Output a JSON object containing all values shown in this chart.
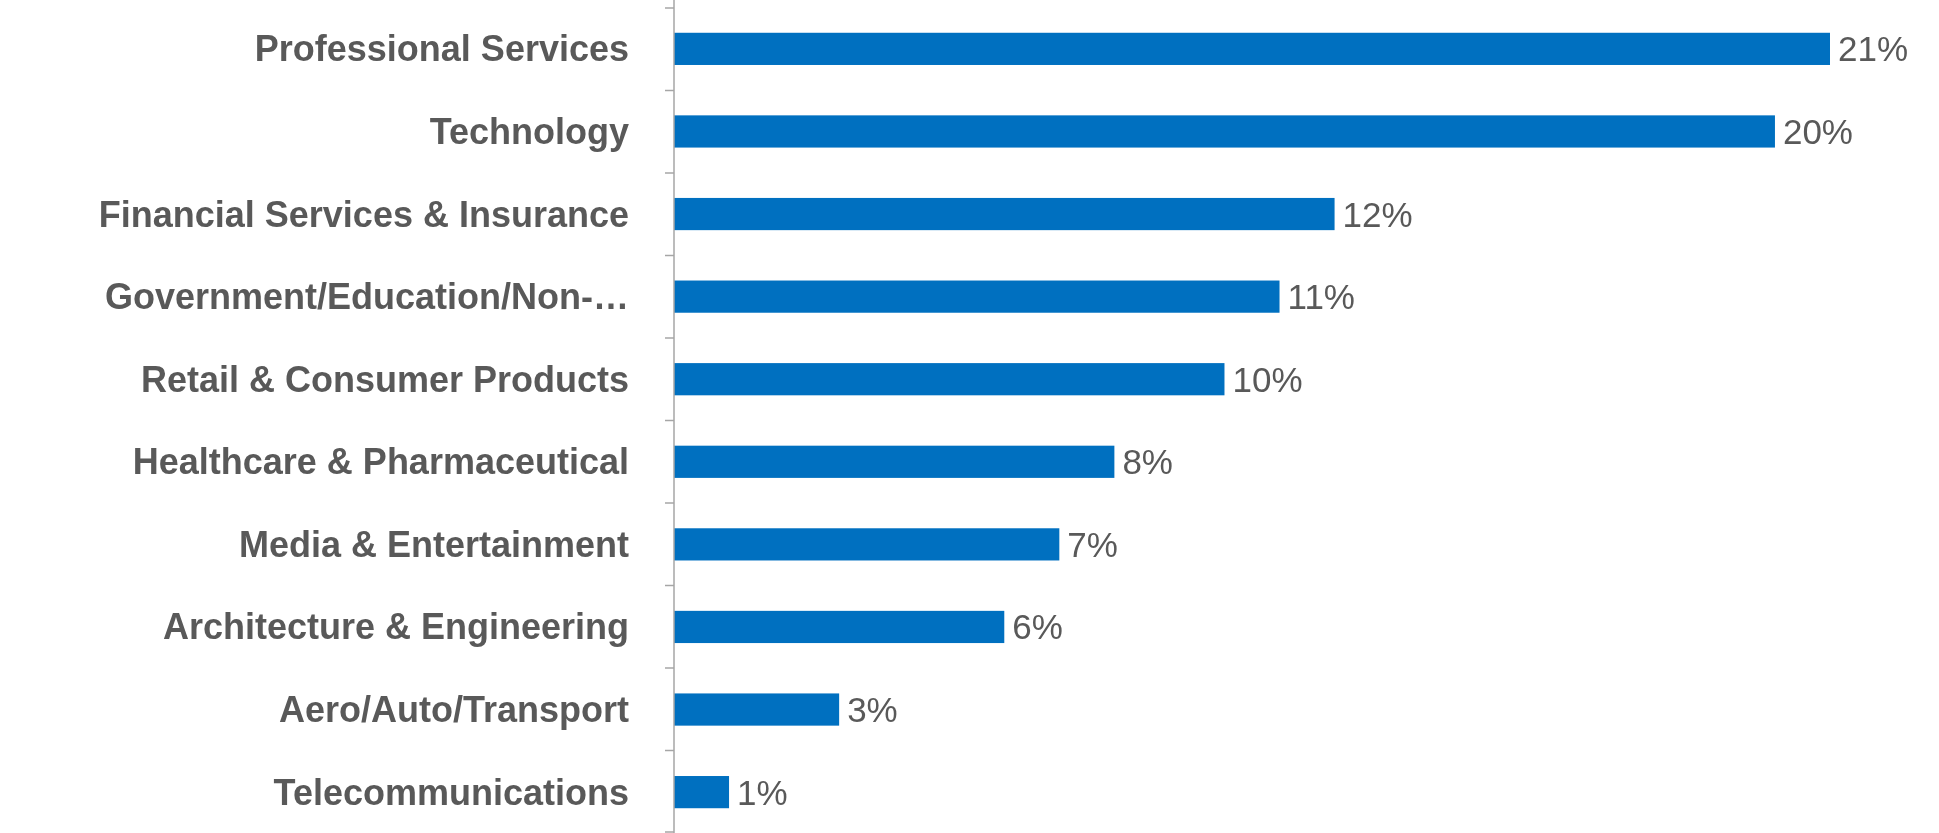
{
  "chart_data": {
    "type": "bar",
    "orientation": "horizontal",
    "categories": [
      "Professional Services",
      "Technology",
      "Financial Services & Insurance",
      "Government/Education/Non-…",
      "Retail & Consumer Products",
      "Healthcare & Pharmaceutical",
      "Media & Entertainment",
      "Architecture & Engineering",
      "Aero/Auto/Transport",
      "Telecommunications"
    ],
    "values": [
      21,
      20,
      12,
      11,
      10,
      8,
      7,
      6,
      3,
      1
    ],
    "value_labels": [
      "21%",
      "20%",
      "12%",
      "11%",
      "10%",
      "8%",
      "7%",
      "6%",
      "3%",
      "1%"
    ],
    "color": "#0070c0"
  }
}
